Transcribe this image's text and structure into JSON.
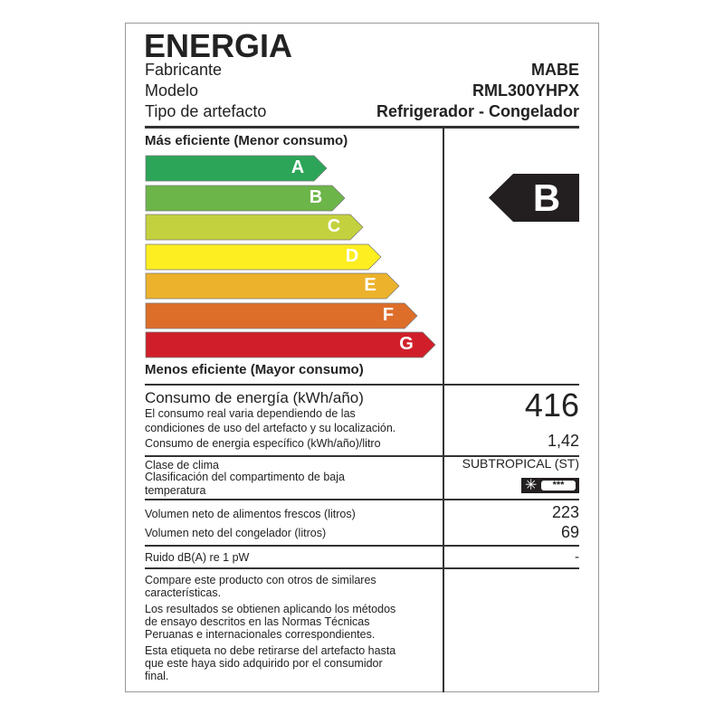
{
  "header": {
    "title": "ENERGIA",
    "rows": [
      {
        "label": "Fabricante",
        "value": "MABE"
      },
      {
        "label": "Modelo",
        "value": "RML300YHPX"
      },
      {
        "label": "Tipo de artefacto",
        "value": "Refrigerador - Congelador"
      }
    ]
  },
  "scale": {
    "top_label": "Más eficiente (Menor consumo)",
    "bottom_label": "Menos eficiente  (Mayor consumo)",
    "classes": [
      {
        "letter": "A",
        "color": "#2ca558"
      },
      {
        "letter": "B",
        "color": "#6cb548"
      },
      {
        "letter": "C",
        "color": "#c4d13e"
      },
      {
        "letter": "D",
        "color": "#fcee21"
      },
      {
        "letter": "E",
        "color": "#ecb22c"
      },
      {
        "letter": "F",
        "color": "#dd6e2a"
      },
      {
        "letter": "G",
        "color": "#d01f2a"
      }
    ],
    "rating": "B",
    "rating_color": "#231f20"
  },
  "consumption": {
    "label": "Consumo de energía (kWh/año)",
    "note_1": "El consumo real varia dependiendo de las",
    "note_2": "condiciones de uso del artefacto y su localización.",
    "value": "416",
    "specific_label": "Consumo de energia específico (kWh/año)/litro",
    "specific_value": "1,42"
  },
  "climate": {
    "label": "Clase de clima",
    "value": "SUBTROPICAL (ST)",
    "freezer_label_1": "Clasificación del compartimento de baja",
    "freezer_label_2": "temperatura",
    "freezer_rating": "***"
  },
  "volume": {
    "fresh_label": "Volumen neto de alimentos frescos (litros)",
    "fresh_value": "223",
    "freezer_label": "Volumen neto del congelador (litros)",
    "freezer_value": "69"
  },
  "noise": {
    "label": "Ruido dB(A) re 1 pW",
    "value": "-"
  },
  "footer": {
    "p1_1": "Compare este producto con otros de similares",
    "p1_2": "características.",
    "p2_1": "Los resultados se obtienen aplicando los métodos",
    "p2_2": "de ensayo descritos en las Normas Técnicas",
    "p2_3": "Peruanas e internacionales correspondientes.",
    "p3_1": "Esta etiqueta no debe retirarse del artefacto hasta",
    "p3_2": "que este haya sido adquirido por el consumidor",
    "p3_3": "final."
  }
}
